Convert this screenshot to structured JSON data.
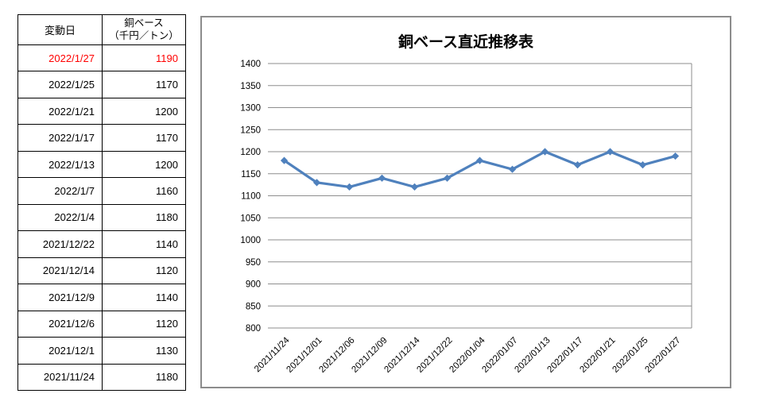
{
  "table": {
    "headers": {
      "date": "変動日",
      "value_line1": "銅ベース",
      "value_line2": "（千円／トン）"
    },
    "highlight_color": "#FF0000",
    "rows": [
      {
        "date": "2022/1/27",
        "value": "1190",
        "highlighted": true
      },
      {
        "date": "2022/1/25",
        "value": "1170",
        "highlighted": false
      },
      {
        "date": "2022/1/21",
        "value": "1200",
        "highlighted": false
      },
      {
        "date": "2022/1/17",
        "value": "1170",
        "highlighted": false
      },
      {
        "date": "2022/1/13",
        "value": "1200",
        "highlighted": false
      },
      {
        "date": "2022/1/7",
        "value": "1160",
        "highlighted": false
      },
      {
        "date": "2022/1/4",
        "value": "1180",
        "highlighted": false
      },
      {
        "date": "2021/12/22",
        "value": "1140",
        "highlighted": false
      },
      {
        "date": "2021/12/14",
        "value": "1120",
        "highlighted": false
      },
      {
        "date": "2021/12/9",
        "value": "1140",
        "highlighted": false
      },
      {
        "date": "2021/12/6",
        "value": "1120",
        "highlighted": false
      },
      {
        "date": "2021/12/1",
        "value": "1130",
        "highlighted": false
      },
      {
        "date": "2021/11/24",
        "value": "1180",
        "highlighted": false
      }
    ]
  },
  "chart_data": {
    "type": "line",
    "title": "銅ベース直近推移表",
    "categories": [
      "2021/11/24",
      "2021/12/01",
      "2021/12/06",
      "2021/12/09",
      "2021/12/14",
      "2021/12/22",
      "2022/01/04",
      "2022/01/07",
      "2022/01/13",
      "2022/01/17",
      "2022/01/21",
      "2022/01/25",
      "2022/01/27"
    ],
    "values": [
      1180,
      1130,
      1120,
      1140,
      1120,
      1140,
      1180,
      1160,
      1200,
      1170,
      1200,
      1170,
      1190
    ],
    "xlabel": "",
    "ylabel": "",
    "ylim": [
      800,
      1400
    ],
    "ytick_step": 50,
    "grid": true,
    "legend_position": "none",
    "line_color": "#4F81BD",
    "marker": "diamond",
    "gridline_color": "#8E8E8E",
    "tick_label_color": "#000000"
  }
}
